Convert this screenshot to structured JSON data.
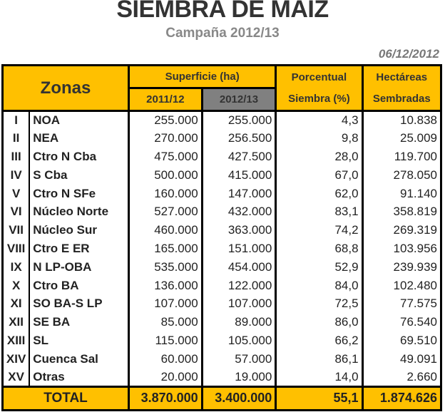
{
  "title": "SIEMBRA DE MAIZ",
  "subtitle": "Campaña 2012/13",
  "date": "06/12/2012",
  "headers": {
    "zonas": "Zonas",
    "superficie": "Superficie (ha)",
    "y1": "2011/12",
    "y2": "2012/13",
    "pct1": "Porcentual",
    "pct2": "Siembra (%)",
    "hec1": "Hectáreas",
    "hec2": "Sembradas"
  },
  "rows": [
    {
      "num": "I",
      "zona": "NOA",
      "s1": "255.000",
      "s2": "255.000",
      "pct": "4,3",
      "hec": "10.838"
    },
    {
      "num": "II",
      "zona": "NEA",
      "s1": "270.000",
      "s2": "256.500",
      "pct": "9,8",
      "hec": "25.009"
    },
    {
      "num": "III",
      "zona": "Ctro N Cba",
      "s1": "475.000",
      "s2": "427.500",
      "pct": "28,0",
      "hec": "119.700"
    },
    {
      "num": "IV",
      "zona": "S Cba",
      "s1": "500.000",
      "s2": "415.000",
      "pct": "67,0",
      "hec": "278.050"
    },
    {
      "num": "V",
      "zona": "Ctro N SFe",
      "s1": "160.000",
      "s2": "147.000",
      "pct": "62,0",
      "hec": "91.140"
    },
    {
      "num": "VI",
      "zona": "Núcleo Norte",
      "s1": "527.000",
      "s2": "432.000",
      "pct": "83,1",
      "hec": "358.819"
    },
    {
      "num": "VII",
      "zona": "Núcleo Sur",
      "s1": "460.000",
      "s2": "363.000",
      "pct": "74,2",
      "hec": "269.319"
    },
    {
      "num": "VIII",
      "zona": "Ctro E ER",
      "s1": "165.000",
      "s2": "151.000",
      "pct": "68,8",
      "hec": "103.956"
    },
    {
      "num": "IX",
      "zona": "N LP-OBA",
      "s1": "535.000",
      "s2": "454.000",
      "pct": "52,9",
      "hec": "239.939"
    },
    {
      "num": "X",
      "zona": "Ctro BA",
      "s1": "136.000",
      "s2": "122.000",
      "pct": "84,0",
      "hec": "102.480"
    },
    {
      "num": "XI",
      "zona": "SO BA-S LP",
      "s1": "107.000",
      "s2": "107.000",
      "pct": "72,5",
      "hec": "77.575"
    },
    {
      "num": "XII",
      "zona": "SE BA",
      "s1": "85.000",
      "s2": "89.000",
      "pct": "86,0",
      "hec": "76.540"
    },
    {
      "num": "XIII",
      "zona": "SL",
      "s1": "115.000",
      "s2": "105.000",
      "pct": "66,2",
      "hec": "69.510"
    },
    {
      "num": "XIV",
      "zona": "Cuenca Sal",
      "s1": "60.000",
      "s2": "57.000",
      "pct": "86,1",
      "hec": "49.091"
    },
    {
      "num": "XV",
      "zona": "Otras",
      "s1": "20.000",
      "s2": "19.000",
      "pct": "14,0",
      "hec": "2.660"
    }
  ],
  "total": {
    "label": "TOTAL",
    "s1": "3.870.000",
    "s2": "3.400.000",
    "pct": "55,1",
    "hec": "1.874.626"
  }
}
